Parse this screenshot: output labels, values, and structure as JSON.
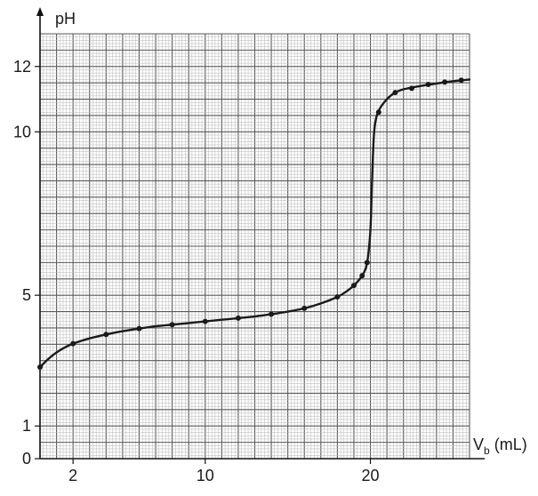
{
  "chart_data": {
    "type": "line",
    "title": "",
    "xlabel": "V_b (mL)",
    "xlabel_main": "V",
    "xlabel_sub": "b",
    "xlabel_unit": " (mL)",
    "ylabel": "pH",
    "xlim": [
      0,
      26
    ],
    "ylim": [
      0,
      13
    ],
    "grid": true,
    "x_ticks": [
      {
        "value": 2,
        "label": "2"
      },
      {
        "value": 10,
        "label": "10"
      },
      {
        "value": 20,
        "label": "20"
      }
    ],
    "y_ticks": [
      {
        "value": 0,
        "label": "0"
      },
      {
        "value": 1,
        "label": "1"
      },
      {
        "value": 5,
        "label": "5"
      },
      {
        "value": 10,
        "label": "10"
      },
      {
        "value": 12,
        "label": "12"
      }
    ],
    "curve": {
      "x": [
        0,
        0.5,
        1,
        1.5,
        2,
        3,
        4,
        5,
        6,
        7,
        8,
        9,
        10,
        11,
        12,
        13,
        14,
        15,
        16,
        17,
        18,
        18.5,
        19,
        19.5,
        19.8,
        20,
        20.1,
        20.2,
        20.3,
        20.5,
        21,
        21.5,
        22,
        23,
        24,
        25,
        26
      ],
      "y": [
        2.8,
        3.05,
        3.25,
        3.4,
        3.52,
        3.68,
        3.8,
        3.9,
        3.98,
        4.05,
        4.1,
        4.15,
        4.2,
        4.25,
        4.3,
        4.35,
        4.42,
        4.5,
        4.6,
        4.75,
        4.95,
        5.1,
        5.3,
        5.6,
        6.0,
        7.0,
        8.5,
        9.8,
        10.3,
        10.65,
        11.0,
        11.2,
        11.3,
        11.4,
        11.48,
        11.55,
        11.6
      ]
    },
    "points": {
      "x": [
        0,
        2,
        4,
        6,
        8,
        10,
        12,
        14,
        16,
        18,
        19,
        19.5,
        19.8,
        20.5,
        21.5,
        22.5,
        23.5,
        24.5,
        25.5
      ],
      "y": [
        2.8,
        3.52,
        3.8,
        3.98,
        4.1,
        4.2,
        4.3,
        4.42,
        4.6,
        4.95,
        5.3,
        5.6,
        6.0,
        10.6,
        11.2,
        11.33,
        11.45,
        11.52,
        11.58
      ]
    },
    "colors": {
      "line": "#1a1a1a",
      "grid_major": "#5a5a5a",
      "grid_minor": "#b5b5b5",
      "axis": "#111111"
    }
  }
}
